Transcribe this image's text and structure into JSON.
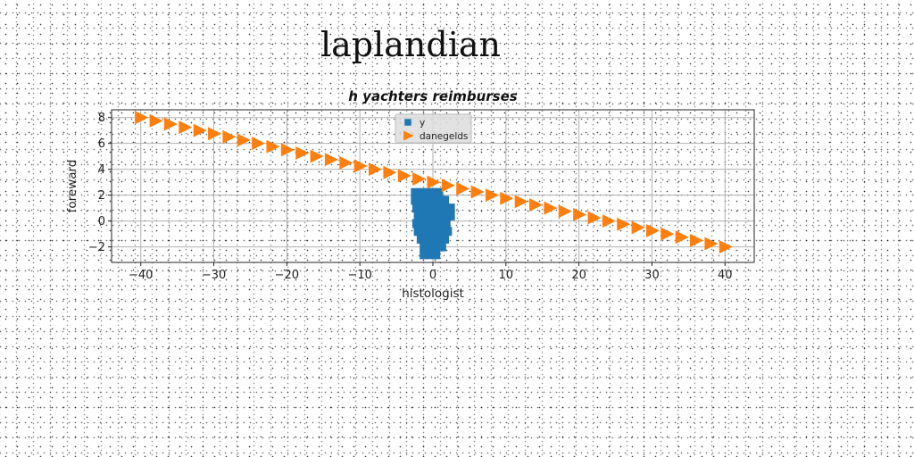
{
  "page": {
    "title": "laplandian"
  },
  "chart_data": {
    "type": "scatter",
    "title": "h yachters reimburses",
    "xlabel": "histologist",
    "ylabel": "foreward",
    "xlim": [
      -44,
      44
    ],
    "ylim": [
      -3.2,
      8.6
    ],
    "xticks": [
      -40,
      -30,
      -20,
      -10,
      0,
      10,
      20,
      30,
      40
    ],
    "yticks": [
      -2,
      0,
      2,
      4,
      6,
      8
    ],
    "grid": true,
    "legend_position": "top-center",
    "series": [
      {
        "name": "y",
        "marker": "square",
        "color": "#1f77b4",
        "x": [
          -2.4,
          -1.6,
          -0.8,
          0,
          0.8,
          -2.4,
          -1.6,
          -0.8,
          0,
          0.8,
          1.6,
          -2.2,
          -1.4,
          -0.6,
          0.2,
          1,
          1.8,
          2.4,
          -2,
          -1.2,
          -0.4,
          0.4,
          1.2,
          2,
          2.4,
          -2.2,
          -1.4,
          -0.6,
          0.2,
          1,
          1.8,
          -2,
          -1.2,
          -0.4,
          0.4,
          1.2,
          2,
          -1.6,
          -0.8,
          0,
          0.8,
          1.6,
          -1.2,
          -0.4,
          0.4,
          1.2,
          -1.2,
          -0.4,
          0.4
        ],
        "y": [
          2.2,
          2.2,
          2.2,
          2.2,
          2.2,
          1.6,
          1.6,
          1.6,
          1.6,
          1.6,
          1.6,
          1,
          1,
          1,
          1,
          1,
          1,
          1,
          0.4,
          0.4,
          0.4,
          0.4,
          0.4,
          0.4,
          0.4,
          -0.2,
          -0.2,
          -0.2,
          -0.2,
          -0.2,
          -0.2,
          -0.8,
          -0.8,
          -0.8,
          -0.8,
          -0.8,
          -0.8,
          -1.4,
          -1.4,
          -1.4,
          -1.4,
          -1.4,
          -2,
          -2,
          -2,
          -2,
          -2.6,
          -2.6,
          -2.6
        ]
      },
      {
        "name": "danegelds",
        "marker": "triangle-right",
        "color": "#ff7f0e",
        "x": [
          -40,
          -38,
          -36,
          -34,
          -32,
          -30,
          -28,
          -26,
          -24,
          -22,
          -20,
          -18,
          -16,
          -14,
          -12,
          -10,
          -8,
          -6,
          -4,
          -2,
          0,
          2,
          4,
          6,
          8,
          10,
          12,
          14,
          16,
          18,
          20,
          22,
          24,
          26,
          28,
          30,
          32,
          34,
          36,
          38,
          40
        ],
        "y": [
          8,
          7.75,
          7.5,
          7.25,
          7,
          6.75,
          6.5,
          6.25,
          6,
          5.75,
          5.5,
          5.25,
          5,
          4.75,
          4.5,
          4.25,
          4,
          3.75,
          3.5,
          3.25,
          3,
          2.75,
          2.5,
          2.25,
          2,
          1.75,
          1.5,
          1.25,
          1,
          0.75,
          0.5,
          0.25,
          0,
          -0.25,
          -0.5,
          -0.75,
          -1,
          -1.25,
          -1.5,
          -1.75,
          -2
        ]
      }
    ]
  }
}
